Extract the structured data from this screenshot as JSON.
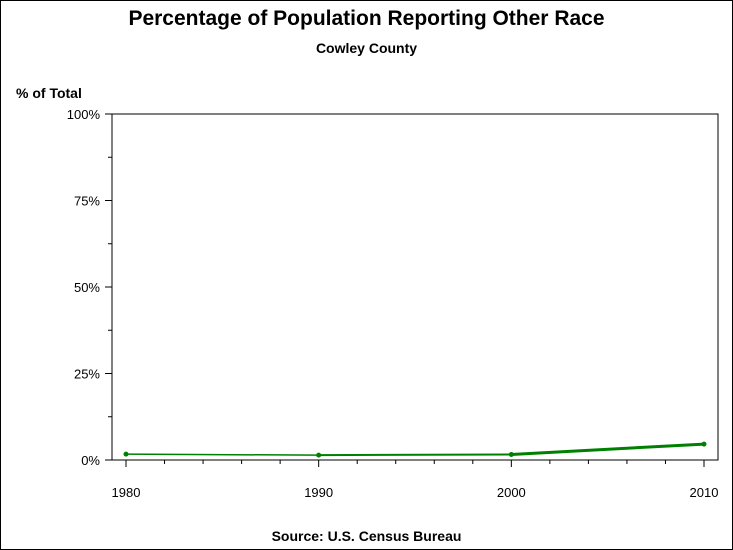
{
  "chart_data": {
    "type": "line",
    "title": "Percentage of Population Reporting Other Race",
    "subtitle": "Cowley County",
    "ylabel": "% of Total",
    "xlabel": "",
    "source": "Source: U.S. Census Bureau",
    "x": [
      1980,
      1990,
      2000,
      2010
    ],
    "series": [
      {
        "values": [
          1.7,
          1.4,
          1.6,
          4.6
        ],
        "color": "#008000"
      }
    ],
    "xlim": [
      1980,
      2010
    ],
    "ylim": [
      0,
      100
    ],
    "xticks": [
      "1980",
      "1990",
      "2000",
      "2010"
    ],
    "yticks": [
      "0%",
      "25%",
      "50%",
      "75%",
      "100%"
    ],
    "grid": false,
    "legend": "none"
  }
}
